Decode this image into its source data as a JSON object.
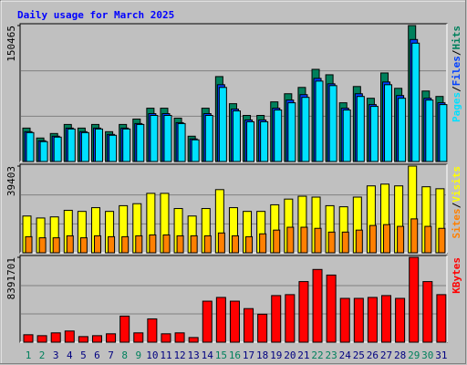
{
  "chart_data": [
    {
      "type": "bar",
      "title": "Daily usage for March 2025",
      "legend_separator": "/",
      "ylim": [
        0,
        150465
      ],
      "yticks": [
        150465
      ],
      "series": [
        {
          "name": "Hits",
          "color": "#00805c",
          "values": [
            37000,
            26000,
            31000,
            41000,
            37000,
            41000,
            33000,
            41000,
            47000,
            59000,
            59000,
            48000,
            28000,
            59000,
            94000,
            64000,
            51000,
            51000,
            66000,
            75000,
            82000,
            102000,
            96000,
            65000,
            83000,
            70000,
            98000,
            81000,
            150465,
            78000,
            72000
          ]
        },
        {
          "name": "Files",
          "color": "#0040ff",
          "values": [
            33000,
            23000,
            28000,
            37000,
            33000,
            37000,
            30000,
            37000,
            42000,
            53000,
            53000,
            43000,
            25000,
            53000,
            85000,
            58000,
            46000,
            46000,
            59000,
            68000,
            74000,
            92000,
            86000,
            59000,
            75000,
            63000,
            88000,
            73000,
            135000,
            70000,
            65000
          ]
        },
        {
          "name": "Pages",
          "color": "#00e0ff",
          "values": [
            32000,
            22000,
            27000,
            36000,
            32000,
            36000,
            29000,
            36000,
            41000,
            51000,
            51000,
            42000,
            24000,
            51000,
            82000,
            56000,
            44000,
            44000,
            57000,
            65000,
            71000,
            89000,
            84000,
            57000,
            72000,
            61000,
            85000,
            70000,
            131000,
            68000,
            63000
          ]
        }
      ]
    },
    {
      "type": "bar",
      "legend_separator": "/",
      "ylim": [
        0,
        39403
      ],
      "yticks": [
        39403
      ],
      "series": [
        {
          "name": "Visits",
          "color": "#ffff00",
          "values": [
            16700,
            15800,
            16300,
            19300,
            18800,
            20500,
            18800,
            21400,
            22300,
            27000,
            27000,
            20100,
            16700,
            20100,
            28700,
            20500,
            18800,
            18800,
            21800,
            24400,
            25700,
            25300,
            21400,
            20900,
            25300,
            30400,
            31200,
            30400,
            39403,
            30000,
            29100
          ]
        },
        {
          "name": "Sites",
          "color": "#ff8000",
          "values": [
            7300,
            6800,
            6800,
            7700,
            6800,
            7700,
            7300,
            7300,
            7700,
            8100,
            8100,
            7700,
            7700,
            7700,
            9000,
            7700,
            7300,
            8600,
            10300,
            11600,
            11600,
            11100,
            9400,
            9400,
            10300,
            12400,
            12800,
            12000,
            15400,
            12000,
            11100
          ]
        }
      ]
    },
    {
      "type": "bar",
      "ylim": [
        0,
        8391701
      ],
      "yticks": [
        8391701
      ],
      "series": [
        {
          "name": "KBytes",
          "color": "#ff0000",
          "values": [
            737000,
            645000,
            922000,
            1106000,
            553000,
            645000,
            830000,
            2581000,
            922000,
            2305000,
            830000,
            922000,
            461000,
            4057000,
            4426000,
            4057000,
            3320000,
            2766000,
            4610000,
            4702000,
            5993000,
            7192000,
            6639000,
            4333000,
            4333000,
            4426000,
            4610000,
            4333000,
            8391701,
            5993000,
            4702000
          ]
        }
      ],
      "categories": [
        "1",
        "2",
        "3",
        "4",
        "5",
        "6",
        "7",
        "8",
        "9",
        "10",
        "11",
        "12",
        "13",
        "14",
        "15",
        "16",
        "17",
        "18",
        "19",
        "20",
        "21",
        "22",
        "23",
        "24",
        "25",
        "26",
        "27",
        "28",
        "29",
        "30",
        "31"
      ],
      "label_colors": [
        "#00805c",
        "#00805c",
        "#000080",
        "#000080",
        "#000080",
        "#000080",
        "#000080",
        "#00805c",
        "#00805c",
        "#000080",
        "#000080",
        "#000080",
        "#000080",
        "#000080",
        "#00805c",
        "#00805c",
        "#000080",
        "#000080",
        "#000080",
        "#000080",
        "#000080",
        "#00805c",
        "#00805c",
        "#000080",
        "#000080",
        "#000080",
        "#000080",
        "#000080",
        "#00805c",
        "#00805c",
        "#000080"
      ]
    }
  ]
}
